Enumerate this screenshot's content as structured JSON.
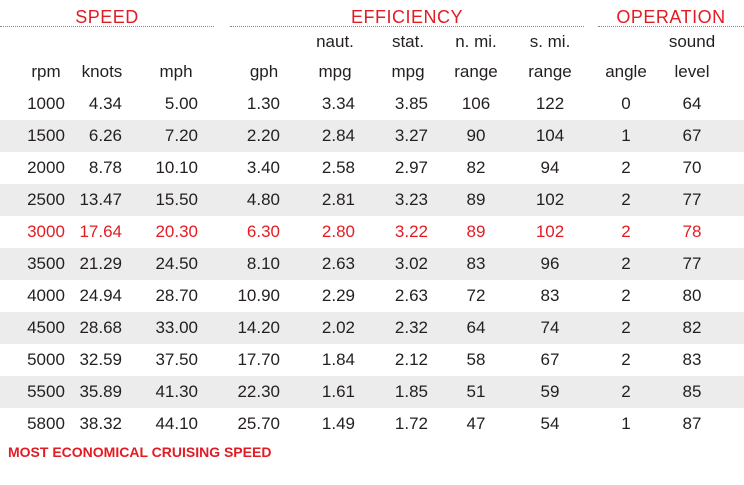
{
  "groups": {
    "speed": "SPEED",
    "efficiency": "EFFICIENCY",
    "operation": "OPERATION"
  },
  "columns": [
    {
      "top": "",
      "bottom": "rpm"
    },
    {
      "top": "",
      "bottom": "knots"
    },
    {
      "top": "",
      "bottom": "mph"
    },
    {
      "top": "",
      "bottom": "gph"
    },
    {
      "top": "naut.",
      "bottom": "mpg"
    },
    {
      "top": "stat.",
      "bottom": "mpg"
    },
    {
      "top": "n. mi.",
      "bottom": "range"
    },
    {
      "top": "s. mi.",
      "bottom": "range"
    },
    {
      "top": "",
      "bottom": "angle"
    },
    {
      "top": "sound",
      "bottom": "level"
    }
  ],
  "rows": [
    [
      "1000",
      "4.34",
      "5.00",
      "1.30",
      "3.34",
      "3.85",
      "106",
      "122",
      "0",
      "64"
    ],
    [
      "1500",
      "6.26",
      "7.20",
      "2.20",
      "2.84",
      "3.27",
      "90",
      "104",
      "1",
      "67"
    ],
    [
      "2000",
      "8.78",
      "10.10",
      "3.40",
      "2.58",
      "2.97",
      "82",
      "94",
      "2",
      "70"
    ],
    [
      "2500",
      "13.47",
      "15.50",
      "4.80",
      "2.81",
      "3.23",
      "89",
      "102",
      "2",
      "77"
    ],
    [
      "3000",
      "17.64",
      "20.30",
      "6.30",
      "2.80",
      "3.22",
      "89",
      "102",
      "2",
      "78"
    ],
    [
      "3500",
      "21.29",
      "24.50",
      "8.10",
      "2.63",
      "3.02",
      "83",
      "96",
      "2",
      "77"
    ],
    [
      "4000",
      "24.94",
      "28.70",
      "10.90",
      "2.29",
      "2.63",
      "72",
      "83",
      "2",
      "80"
    ],
    [
      "4500",
      "28.68",
      "33.00",
      "14.20",
      "2.02",
      "2.32",
      "64",
      "74",
      "2",
      "82"
    ],
    [
      "5000",
      "32.59",
      "37.50",
      "17.70",
      "1.84",
      "2.12",
      "58",
      "67",
      "2",
      "83"
    ],
    [
      "5500",
      "35.89",
      "41.30",
      "22.30",
      "1.61",
      "1.85",
      "51",
      "59",
      "2",
      "85"
    ],
    [
      "5800",
      "38.32",
      "44.10",
      "25.70",
      "1.49",
      "1.72",
      "47",
      "54",
      "1",
      "87"
    ]
  ],
  "highlight_row": 4,
  "footer": "MOST ECONOMICAL CRUISING SPEED",
  "colors": {
    "accent": "#e31b23",
    "shade": "#ececec",
    "text": "#231f20"
  }
}
